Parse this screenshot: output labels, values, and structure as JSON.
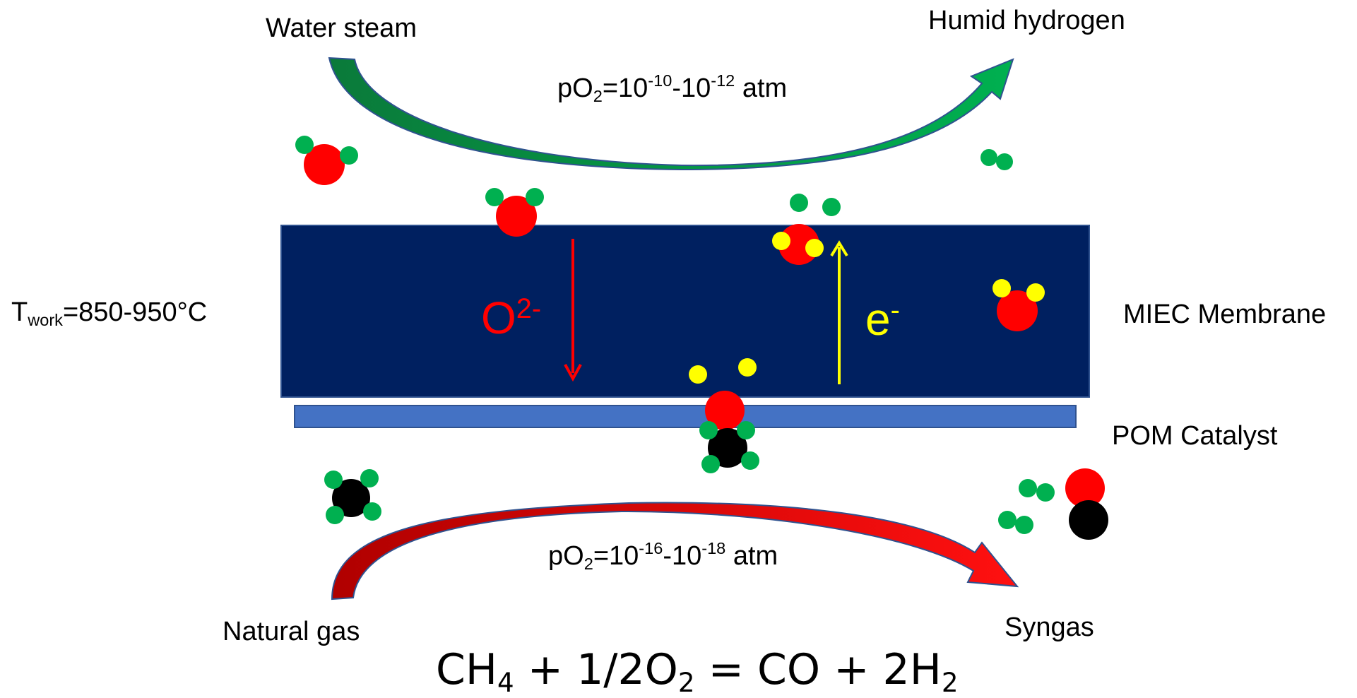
{
  "labels": {
    "water_steam": "Water steam",
    "humid_hydrogen": "Humid hydrogen",
    "po2_top": {
      "base": "pO",
      "sub": "2",
      "eq": "=10",
      "exp1": "-10",
      "dash": "-10",
      "exp2": "-12",
      "unit": " atm"
    },
    "po2_bottom": {
      "base": "pO",
      "sub": "2",
      "eq": "=10",
      "exp1": "-16",
      "dash": "-10",
      "exp2": "-18",
      "unit": " atm"
    },
    "t_work": {
      "base": "T",
      "sub": "work",
      "value": "=850-950°C"
    },
    "membrane": "MIEC Membrane",
    "catalyst": "POM Catalyst",
    "natural_gas": "Natural gas",
    "syngas": "Syngas"
  },
  "ions": {
    "oxygen": {
      "base": "O",
      "sup": "2-"
    },
    "electron": {
      "base": "e",
      "sup": "-"
    }
  },
  "equation": {
    "ch": "CH",
    "ch_sub": "4",
    "plus_half": " + 1/2O",
    "o_sub": "2",
    "rhs": " = CO + 2H",
    "h_sub": "2"
  },
  "colors": {
    "membrane": "#002060",
    "catalyst": "#4472c4",
    "oxygen_atom": "#ff0000",
    "hydrogen_atom": "#00b050",
    "carbon_atom": "#000000",
    "electron_dot": "#ffff00",
    "oxygen_ion_arrow": "#ff0000",
    "electron_arrow": "#ffff00",
    "steam_arrow": "#00b050",
    "gas_arrow": "#ff0000"
  }
}
